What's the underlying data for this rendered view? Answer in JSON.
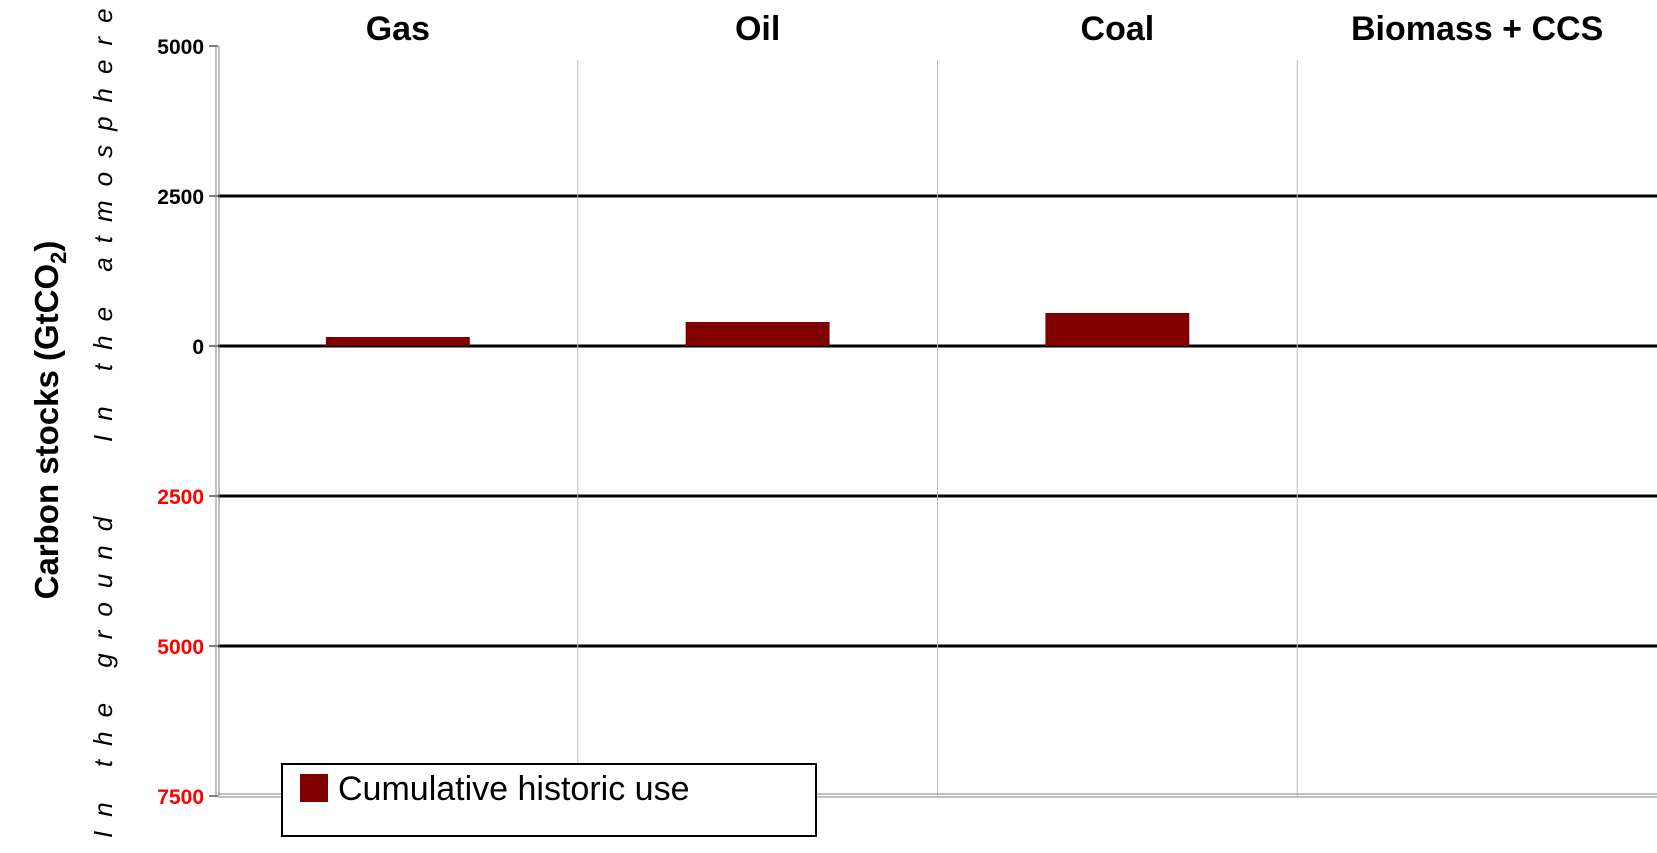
{
  "chart_data": {
    "type": "bar",
    "categories": [
      "Gas",
      "Oil",
      "Coal",
      "Biomass + CCS"
    ],
    "series": [
      {
        "name": "Cumulative historic use",
        "values": [
          150,
          400,
          550,
          0
        ],
        "color": "#800000"
      }
    ],
    "ylabel": "Carbon stocks (GtCO",
    "ylabel_sub": "2",
    "ylabel_close": ")",
    "upper_region_label": "In the atmosphere",
    "lower_region_label": "In the ground",
    "ylim": [
      -7500,
      5000
    ],
    "yticks": [
      {
        "value": 5000,
        "label": "5000",
        "color": "#000000"
      },
      {
        "value": 2500,
        "label": "2500",
        "color": "#000000"
      },
      {
        "value": 0,
        "label": "0",
        "color": "#000000"
      },
      {
        "value": -2500,
        "label": "2500",
        "color": "#ff0000"
      },
      {
        "value": -5000,
        "label": "5000",
        "color": "#ff0000"
      },
      {
        "value": -7500,
        "label": "7500",
        "color": "#ff0000"
      }
    ],
    "gridlines": [
      2500,
      0,
      -2500,
      -5000
    ],
    "legend_position": "bottom-left"
  }
}
